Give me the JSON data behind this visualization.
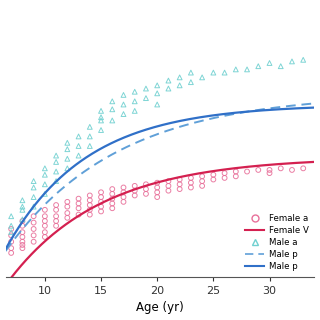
{
  "xlabel": "Age (yr)",
  "xlim": [
    6.5,
    34
  ],
  "xticks": [
    10,
    15,
    20,
    25,
    30
  ],
  "background_color": "#ffffff",
  "female_scatter_color": "#e8709a",
  "male_scatter_color": "#70d0d0",
  "female_line_color": "#d42050",
  "male_dashed_color": "#60a0d8",
  "male_solid_color": "#3070c8",
  "female_vbgf": {
    "Linf": 115,
    "K": 0.12,
    "t0": 3.5
  },
  "male_vbgf_dashed": {
    "Linf": 155,
    "K": 0.1,
    "t0": 2.0
  },
  "male_vbgf_solid": {
    "Linf": 148,
    "K": 0.14,
    "t0": 3.0
  },
  "female_ages": [
    7,
    7,
    7,
    7,
    7,
    8,
    8,
    8,
    8,
    8,
    8,
    8,
    9,
    9,
    9,
    9,
    9,
    10,
    10,
    10,
    10,
    10,
    10,
    11,
    11,
    11,
    11,
    11,
    12,
    12,
    12,
    12,
    13,
    13,
    13,
    13,
    14,
    14,
    14,
    14,
    14,
    15,
    15,
    15,
    15,
    15,
    16,
    16,
    16,
    16,
    16,
    17,
    17,
    17,
    17,
    18,
    18,
    18,
    19,
    19,
    19,
    20,
    20,
    20,
    20,
    21,
    21,
    21,
    22,
    22,
    22,
    23,
    23,
    23,
    24,
    24,
    24,
    25,
    25,
    26,
    26,
    27,
    27,
    28,
    29,
    30,
    30,
    31,
    32,
    33
  ],
  "female_lengths": [
    62,
    58,
    66,
    70,
    55,
    72,
    68,
    65,
    60,
    75,
    58,
    62,
    78,
    74,
    70,
    66,
    62,
    82,
    78,
    75,
    72,
    68,
    65,
    85,
    82,
    78,
    75,
    72,
    87,
    84,
    80,
    77,
    89,
    86,
    83,
    79,
    91,
    88,
    85,
    82,
    79,
    93,
    90,
    87,
    84,
    81,
    95,
    92,
    89,
    86,
    83,
    96,
    93,
    90,
    87,
    97,
    94,
    91,
    98,
    95,
    92,
    99,
    96,
    93,
    90,
    100,
    97,
    94,
    101,
    98,
    95,
    102,
    99,
    96,
    103,
    100,
    97,
    104,
    101,
    105,
    102,
    106,
    103,
    106,
    107,
    107,
    105,
    108,
    107,
    108
  ],
  "male_ages": [
    7,
    7,
    7,
    8,
    8,
    8,
    8,
    9,
    9,
    9,
    9,
    10,
    10,
    10,
    10,
    11,
    11,
    11,
    11,
    12,
    12,
    12,
    12,
    13,
    13,
    13,
    14,
    14,
    14,
    15,
    15,
    15,
    15,
    16,
    16,
    16,
    17,
    17,
    17,
    18,
    18,
    18,
    19,
    19,
    20,
    20,
    20,
    21,
    21,
    22,
    22,
    23,
    23,
    24,
    25,
    26,
    27,
    28,
    29,
    30,
    31,
    32,
    33
  ],
  "male_lengths": [
    72,
    78,
    68,
    82,
    88,
    76,
    84,
    90,
    96,
    84,
    100,
    98,
    104,
    92,
    108,
    106,
    112,
    100,
    116,
    114,
    120,
    108,
    124,
    122,
    128,
    116,
    128,
    134,
    122,
    138,
    144,
    132,
    140,
    145,
    150,
    138,
    148,
    154,
    142,
    150,
    156,
    144,
    152,
    158,
    155,
    160,
    148,
    158,
    163,
    160,
    165,
    162,
    168,
    165,
    168,
    168,
    170,
    170,
    172,
    174,
    172,
    175,
    176
  ],
  "ylim": [
    40,
    210
  ]
}
